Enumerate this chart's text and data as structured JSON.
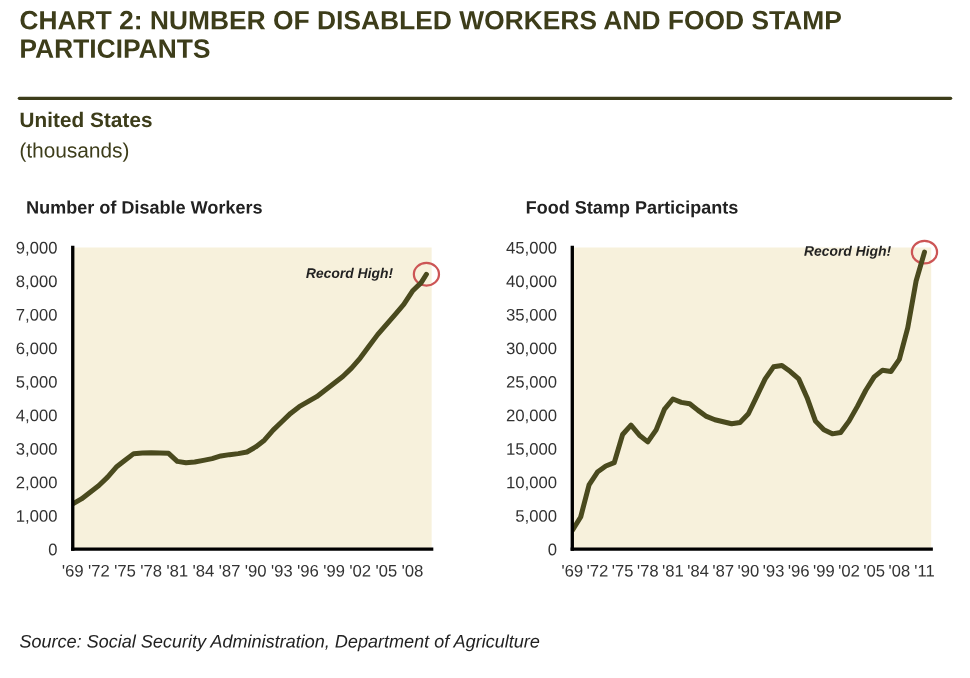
{
  "chart_data": [
    {
      "type": "line",
      "title": "CHART 2: NUMBER OF DISABLED WORKERS AND FOOD STAMP PARTICIPANTS",
      "subtitle": "United States\n(thousands)",
      "ylabel": "Number of Disable Workers",
      "x": [
        1969,
        1970,
        1971,
        1972,
        1973,
        1974,
        1975,
        1976,
        1977,
        1978,
        1979,
        1980,
        1981,
        1982,
        1983,
        1984,
        1985,
        1986,
        1987,
        1988,
        1989,
        1990,
        1991,
        1992,
        1993,
        1994,
        1995,
        1996,
        1997,
        1998,
        1999,
        2000,
        2001,
        2002,
        2003,
        2004,
        2005,
        2006,
        2007,
        2008,
        2009,
        2009.6
      ],
      "series": [
        {
          "color": "#4a4a1e",
          "values": [
            1350,
            1500,
            1700,
            1900,
            2150,
            2450,
            2650,
            2850,
            2870,
            2880,
            2870,
            2860,
            2620,
            2580,
            2600,
            2650,
            2700,
            2780,
            2820,
            2850,
            2900,
            3050,
            3250,
            3550,
            3800,
            4050,
            4250,
            4400,
            4550,
            4750,
            4950,
            5150,
            5400,
            5700,
            6050,
            6400,
            6700,
            7000,
            7300,
            7700,
            7950,
            8200
          ]
        }
      ],
      "xlim": [
        1969,
        2010.2
      ],
      "xticks": [
        {
          "value": 1969,
          "label": "'69"
        },
        {
          "value": 1972,
          "label": "'72"
        },
        {
          "value": 1975,
          "label": "'75"
        },
        {
          "value": 1978,
          "label": "'78"
        },
        {
          "value": 1981,
          "label": "'81"
        },
        {
          "value": 1984,
          "label": "'84"
        },
        {
          "value": 1987,
          "label": "'87"
        },
        {
          "value": 1990,
          "label": "'90"
        },
        {
          "value": 1993,
          "label": "'93"
        },
        {
          "value": 1996,
          "label": "'96"
        },
        {
          "value": 1999,
          "label": "'99"
        },
        {
          "value": 2002,
          "label": "'02"
        },
        {
          "value": 2005,
          "label": "'05"
        },
        {
          "value": 2008,
          "label": "'08"
        }
      ],
      "ylim": [
        0,
        9000
      ],
      "yticks": [
        {
          "value": 0,
          "label": "0"
        },
        {
          "value": 1000,
          "label": "1,000"
        },
        {
          "value": 2000,
          "label": "2,000"
        },
        {
          "value": 3000,
          "label": "3,000"
        },
        {
          "value": 4000,
          "label": "4,000"
        },
        {
          "value": 5000,
          "label": "5,000"
        },
        {
          "value": 6000,
          "label": "6,000"
        },
        {
          "value": 7000,
          "label": "7,000"
        },
        {
          "value": 8000,
          "label": "8,000"
        },
        {
          "value": 9000,
          "label": "9,000"
        }
      ],
      "annotations": [
        {
          "text": "Record High!",
          "x": 2009.6,
          "y": 8200
        }
      ],
      "grid": false,
      "legend": false
    },
    {
      "type": "line",
      "ylabel": "Food Stamp Participants",
      "x": [
        1969,
        1970,
        1971,
        1972,
        1973,
        1974,
        1975,
        1976,
        1977,
        1978,
        1979,
        1980,
        1981,
        1982,
        1983,
        1984,
        1985,
        1986,
        1987,
        1988,
        1989,
        1990,
        1991,
        1992,
        1993,
        1994,
        1995,
        1996,
        1997,
        1998,
        1999,
        2000,
        2001,
        2002,
        2003,
        2004,
        2005,
        2006,
        2007,
        2008,
        2009,
        2010,
        2011
      ],
      "series": [
        {
          "color": "#4a4a1e",
          "values": [
            2800,
            4800,
            9600,
            11500,
            12400,
            12900,
            17100,
            18500,
            17000,
            16000,
            17800,
            20900,
            22400,
            21900,
            21700,
            20700,
            19800,
            19300,
            19000,
            18700,
            18900,
            20200,
            22800,
            25400,
            27200,
            27400,
            26500,
            25400,
            22600,
            19100,
            17800,
            17200,
            17400,
            19100,
            21300,
            23700,
            25700,
            26700,
            26500,
            28300,
            33000,
            40000,
            44300
          ]
        }
      ],
      "xlim": [
        1969,
        2011.8
      ],
      "xticks": [
        {
          "value": 1969,
          "label": "'69"
        },
        {
          "value": 1972,
          "label": "'72"
        },
        {
          "value": 1975,
          "label": "'75"
        },
        {
          "value": 1978,
          "label": "'78"
        },
        {
          "value": 1981,
          "label": "'81"
        },
        {
          "value": 1984,
          "label": "'84"
        },
        {
          "value": 1987,
          "label": "'87"
        },
        {
          "value": 1990,
          "label": "'90"
        },
        {
          "value": 1993,
          "label": "'93"
        },
        {
          "value": 1996,
          "label": "'96"
        },
        {
          "value": 1999,
          "label": "'99"
        },
        {
          "value": 2002,
          "label": "'02"
        },
        {
          "value": 2005,
          "label": "'05"
        },
        {
          "value": 2008,
          "label": "'08"
        },
        {
          "value": 2011,
          "label": "'11"
        }
      ],
      "ylim": [
        0,
        45000
      ],
      "yticks": [
        {
          "value": 0,
          "label": "0"
        },
        {
          "value": 5000,
          "label": "5,000"
        },
        {
          "value": 10000,
          "label": "10,000"
        },
        {
          "value": 15000,
          "label": "15,000"
        },
        {
          "value": 20000,
          "label": "20,000"
        },
        {
          "value": 25000,
          "label": "25,000"
        },
        {
          "value": 30000,
          "label": "30,000"
        },
        {
          "value": 35000,
          "label": "35,000"
        },
        {
          "value": 40000,
          "label": "40,000"
        },
        {
          "value": 45000,
          "label": "45,000"
        }
      ],
      "annotations": [
        {
          "text": "Record High!",
          "x": 2011,
          "y": 44300
        },
        "Source: Social Security Administration, Department of Agriculture"
      ],
      "grid": false,
      "legend": false
    }
  ]
}
